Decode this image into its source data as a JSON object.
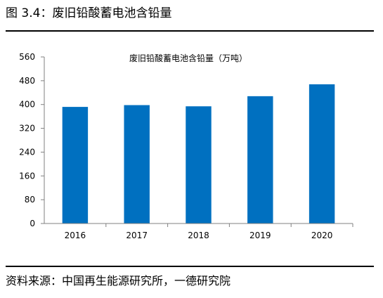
{
  "figure_title": "图 3.4：废旧铅酸蓄电池含铅量",
  "source": "资料来源：中国再生能源研究所，一德研究院",
  "colors": {
    "bar": "#0070C0",
    "axis": "#808080",
    "rule": "#000000"
  },
  "chart_data": {
    "type": "bar",
    "title": "废旧铅酸蓄电池含铅量（万吨）",
    "categories": [
      "2016",
      "2017",
      "2018",
      "2019",
      "2020"
    ],
    "values": [
      392,
      398,
      394,
      428,
      468
    ],
    "ylim": [
      0,
      560
    ],
    "yticks": [
      0,
      80,
      160,
      240,
      320,
      400,
      480,
      560
    ],
    "grid": false,
    "legend": false
  }
}
